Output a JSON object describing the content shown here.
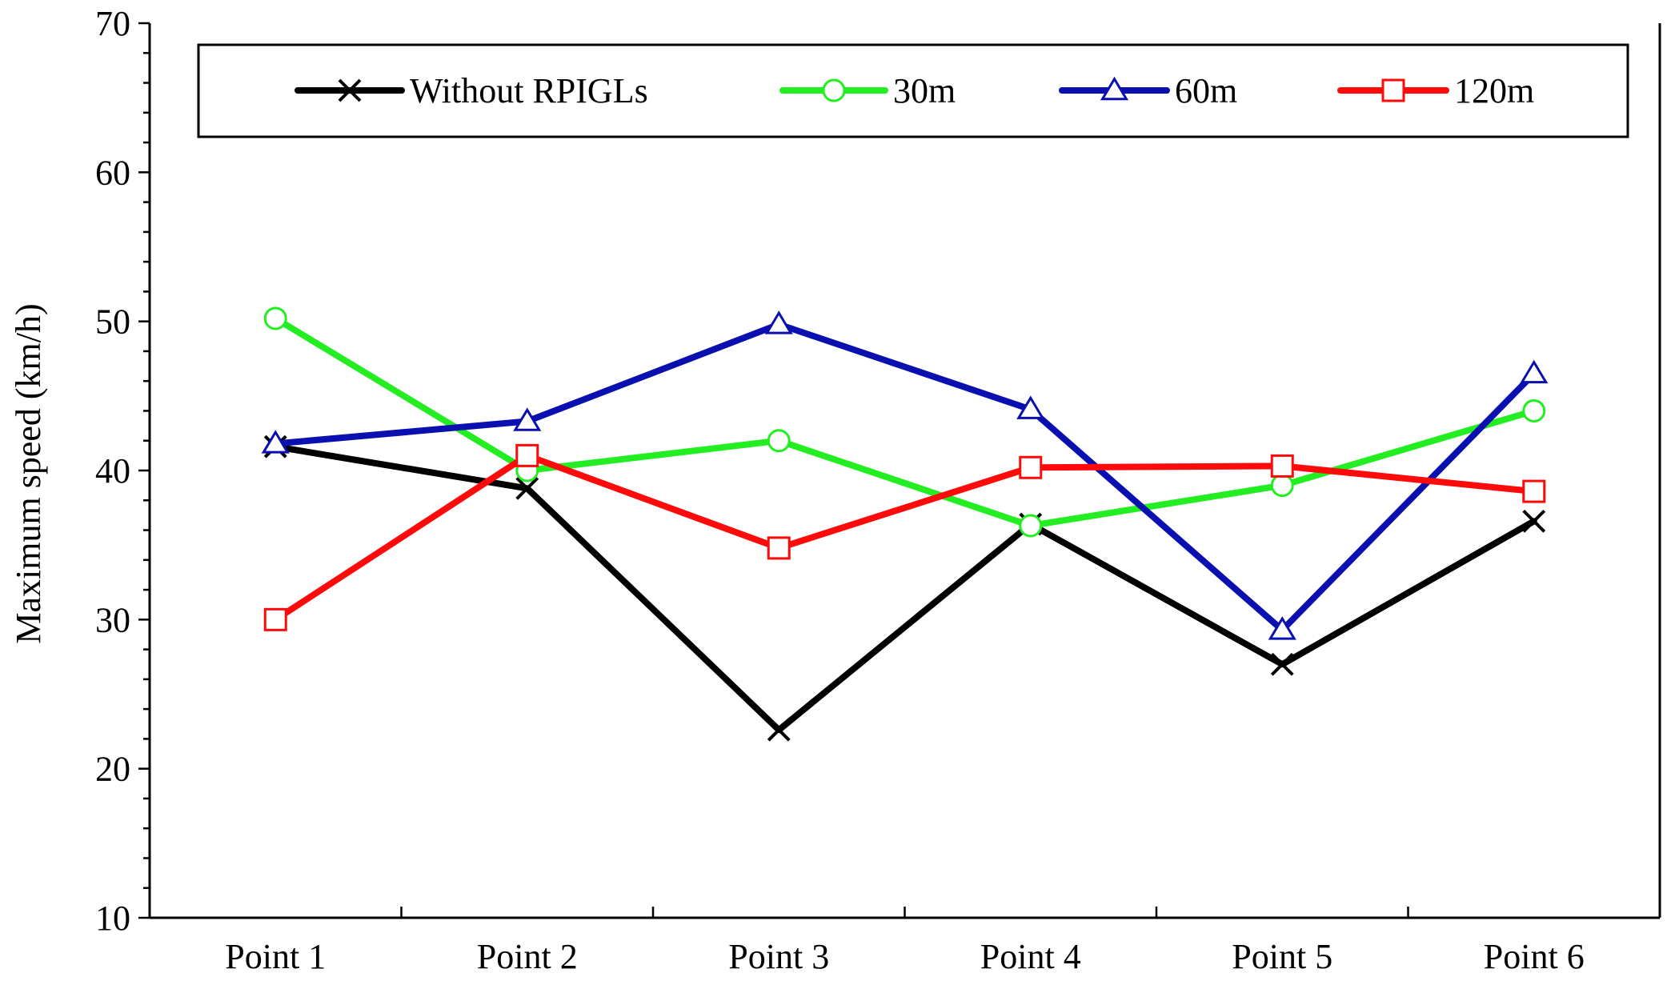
{
  "chart_data": {
    "type": "line",
    "title": "",
    "xlabel": "",
    "ylabel": "Maximum speed (km/h)",
    "ylim": [
      10,
      70
    ],
    "yticks": [
      "10",
      "20",
      "30",
      "40",
      "50",
      "60",
      "70"
    ],
    "categories": [
      "Point 1",
      "Point 2",
      "Point 3",
      "Point 4",
      "Point 5",
      "Point 6"
    ],
    "legend_position": "top",
    "series": [
      {
        "name": "Without RPIGLs",
        "color": "#000000",
        "marker": "x-mark",
        "values": [
          41.6,
          38.8,
          22.6,
          36.4,
          27.0,
          36.6
        ]
      },
      {
        "name": "30m",
        "color": "#22ee22",
        "marker": "circle",
        "values": [
          50.2,
          40.0,
          42.0,
          36.3,
          39.0,
          44.0
        ]
      },
      {
        "name": "60m",
        "color": "#0a10b0",
        "marker": "triangle",
        "values": [
          41.8,
          43.3,
          49.8,
          44.1,
          29.3,
          46.5
        ]
      },
      {
        "name": "120m",
        "color": "#ff0a0a",
        "marker": "square",
        "values": [
          30.0,
          41.0,
          34.8,
          40.2,
          40.3,
          38.6
        ]
      }
    ]
  }
}
